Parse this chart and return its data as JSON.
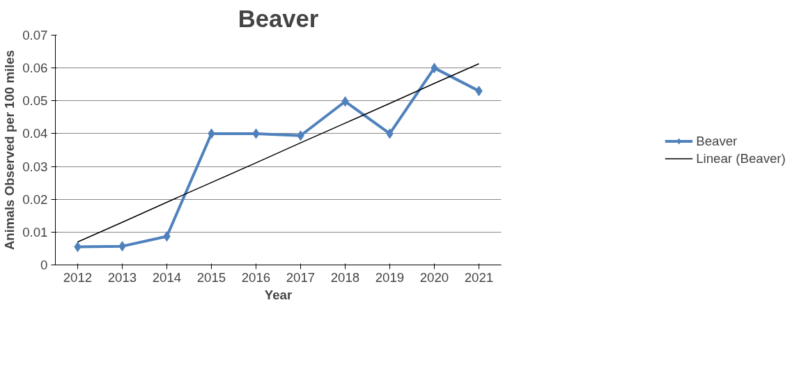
{
  "chart_data": {
    "type": "line",
    "title": "Beaver",
    "xlabel": "Year",
    "ylabel": "Animals Observed per 100 miles",
    "categories": [
      "2012",
      "2013",
      "2014",
      "2015",
      "2016",
      "2017",
      "2018",
      "2019",
      "2020",
      "2021"
    ],
    "series": [
      {
        "name": "Beaver",
        "color": "#4f81bd",
        "marker": "diamond",
        "values": [
          0.0055,
          0.0057,
          0.0087,
          0.04,
          0.04,
          0.0394,
          0.0498,
          0.04,
          0.06,
          0.053
        ]
      },
      {
        "name": "Linear (Beaver)",
        "color": "#000000",
        "marker": "none",
        "values": [
          0.007,
          0.013,
          0.0191,
          0.0251,
          0.0311,
          0.0372,
          0.0432,
          0.0492,
          0.0553,
          0.0613
        ]
      }
    ],
    "ylim": [
      0,
      0.07
    ],
    "yticks": [
      0,
      0.01,
      0.02,
      0.03,
      0.04,
      0.05,
      0.06,
      0.07
    ],
    "grid": "y",
    "legend": "right",
    "line_style": "solid"
  }
}
